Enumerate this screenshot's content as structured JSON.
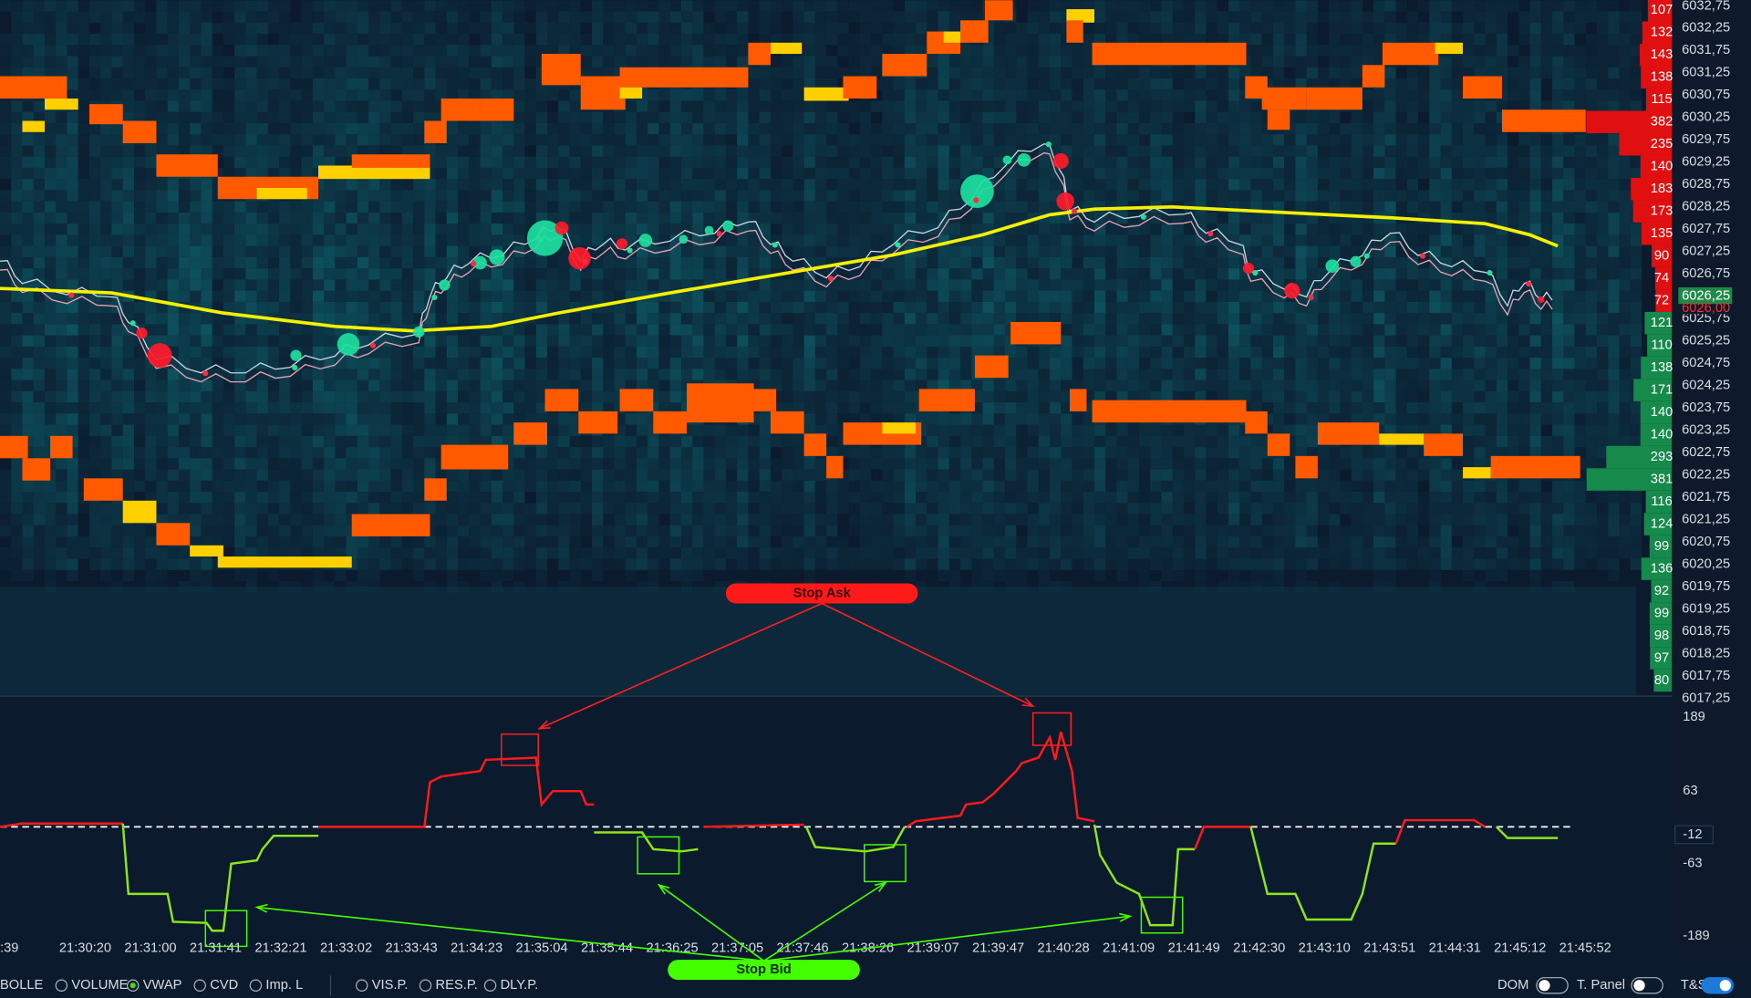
{
  "price_axis": {
    "labels": [
      "6032,75",
      "6032,25",
      "6031,75",
      "6031,25",
      "6030,75",
      "6030,25",
      "6029,75",
      "6029,25",
      "6028,75",
      "6028,25",
      "6027,75",
      "6027,25",
      "6026,75",
      "6026,25",
      "6025,75",
      "6025,25",
      "6024,75",
      "6024,25",
      "6023,75",
      "6023,25",
      "6022,75",
      "6022,25",
      "6021,75",
      "6021,25",
      "6020,75",
      "6020,25",
      "6019,75",
      "6019,25",
      "6018,75",
      "6018,25",
      "6017,75",
      "6017,25"
    ],
    "current_price": "6026,25",
    "last_price": "6026,00",
    "ask_volumes": [
      107,
      132,
      143,
      138,
      115,
      382,
      235,
      140,
      183,
      173,
      135,
      90,
      74,
      72
    ],
    "bid_volumes": [
      121,
      110,
      138,
      171,
      140,
      140,
      293,
      381,
      116,
      124,
      99,
      136,
      92,
      99,
      98,
      97,
      80
    ]
  },
  "indicator_axis": {
    "labels": [
      "189",
      "63",
      "-12",
      "-63",
      "-189"
    ]
  },
  "time_axis": {
    "labels": [
      ":39",
      "21:30:20",
      "21:31:00",
      "21:31:41",
      "21:32:21",
      "21:33:02",
      "21:33:43",
      "21:34:23",
      "21:35:04",
      "21:35:44",
      "21:36:25",
      "21:37:05",
      "21:37:46",
      "21:38:26",
      "21:39:07",
      "21:39:47",
      "21:40:28",
      "21:41:09",
      "21:41:49",
      "21:42:30",
      "21:43:10",
      "21:43:51",
      "21:44:31",
      "21:45:12",
      "21:45:52"
    ]
  },
  "annotations": {
    "stop_ask": "Stop Ask",
    "stop_bid": "Stop Bid"
  },
  "toolbar": {
    "indicators": [
      "BOLLE",
      "VOLUME",
      "VWAP",
      "CVD",
      "Imp. L"
    ],
    "profiles": [
      "VIS.P.",
      "RES.P.",
      "DLY.P."
    ],
    "toggles": [
      "DOM",
      "T. Panel",
      "T&S"
    ]
  }
}
